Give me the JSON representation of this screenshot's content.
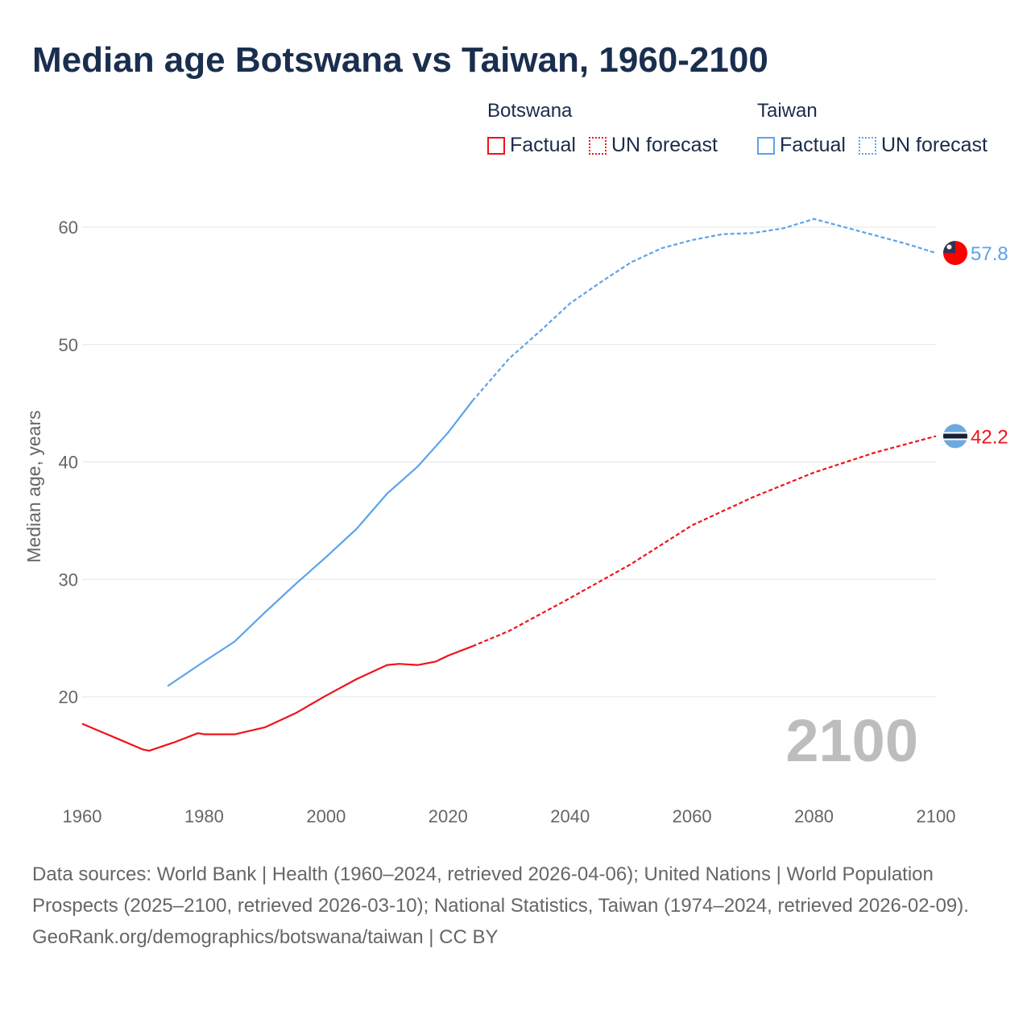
{
  "title": "Median age Botswana vs Taiwan, 1960-2100",
  "legend": {
    "groups": [
      {
        "name": "Botswana",
        "items": [
          "Factual",
          "UN forecast"
        ],
        "color": "#f0121b"
      },
      {
        "name": "Taiwan",
        "items": [
          "Factual",
          "UN forecast"
        ],
        "color": "#5ba3ea"
      }
    ]
  },
  "year_watermark": "2100",
  "footer": {
    "sources": "Data sources: World Bank | Health (1960–2024, retrieved 2026-04-06); United Nations | World Population Prospects (2025–2100, retrieved 2026-03-10); National Statistics, Taiwan (1974–2024, retrieved 2026-02-09).",
    "credit": "GeoRank.org/demographics/botswana/taiwan | CC BY"
  },
  "chart_data": {
    "type": "line",
    "title": "Median age Botswana vs Taiwan, 1960-2100",
    "xlabel": "",
    "ylabel": "Median age, years",
    "xlim": [
      1960,
      2100
    ],
    "ylim": [
      13,
      63
    ],
    "xticks": [
      1960,
      1980,
      2000,
      2020,
      2040,
      2060,
      2080,
      2100
    ],
    "yticks": [
      20,
      30,
      40,
      50,
      60
    ],
    "grid": true,
    "legend_position": "top-right",
    "series": [
      {
        "name": "Botswana",
        "color": "#f0121b",
        "end_label": "42.2",
        "factual": {
          "x": [
            1960,
            1965,
            1970,
            1971,
            1975,
            1979,
            1980,
            1985,
            1990,
            1995,
            2000,
            2005,
            2010,
            2012,
            2015,
            2018,
            2020,
            2024
          ],
          "y": [
            17.7,
            16.6,
            15.5,
            15.4,
            16.1,
            16.9,
            16.8,
            16.8,
            17.4,
            18.6,
            20.1,
            21.5,
            22.7,
            22.8,
            22.7,
            23.0,
            23.5,
            24.3
          ]
        },
        "forecast": {
          "x": [
            2024,
            2030,
            2040,
            2050,
            2060,
            2070,
            2080,
            2090,
            2100
          ],
          "y": [
            24.3,
            25.6,
            28.4,
            31.3,
            34.6,
            37.0,
            39.1,
            40.8,
            42.2
          ]
        }
      },
      {
        "name": "Taiwan",
        "color": "#5ba3ea",
        "end_label": "57.8",
        "factual": {
          "x": [
            1974,
            1980,
            1985,
            1990,
            1995,
            2000,
            2005,
            2010,
            2015,
            2020,
            2024
          ],
          "y": [
            20.9,
            23.0,
            24.7,
            27.2,
            29.6,
            31.9,
            34.3,
            37.3,
            39.6,
            42.5,
            45.2
          ]
        },
        "forecast": {
          "x": [
            2024,
            2030,
            2035,
            2040,
            2045,
            2050,
            2055,
            2060,
            2065,
            2070,
            2075,
            2080,
            2085,
            2090,
            2095,
            2100
          ],
          "y": [
            45.2,
            48.8,
            51.1,
            53.5,
            55.3,
            57.0,
            58.2,
            58.9,
            59.4,
            59.5,
            59.9,
            60.7,
            60.0,
            59.3,
            58.6,
            57.8
          ]
        }
      }
    ]
  }
}
